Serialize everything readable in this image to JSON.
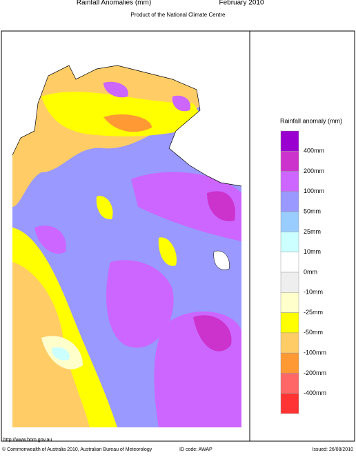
{
  "header": {
    "title": "Rainfall Anomalies (mm)",
    "period": "February 2010",
    "subtitle": "Product of the National Climate Centre"
  },
  "legend": {
    "title": "Rainfall anomaly (mm)",
    "labels": [
      "400mm",
      "200mm",
      "100mm",
      "50mm",
      "25mm",
      "10mm",
      "0mm",
      "-10mm",
      "-25mm",
      "-50mm",
      "-100mm",
      "-200mm",
      "-400mm"
    ],
    "colors": [
      "#9a00d0",
      "#cc33cc",
      "#cc66ff",
      "#9999ff",
      "#99ccff",
      "#ccffff",
      "#ffffff",
      "#eeeeee",
      "#ffffcc",
      "#ffff00",
      "#ffcc66",
      "#ff9933",
      "#ff6666",
      "#ff3333"
    ]
  },
  "footer": {
    "url": "http://www.bom.gov.au",
    "copyright": "© Commonwealth of Australia 2010, Australian Bureau of Meteorology",
    "id_code": "ID code: AWAP",
    "issued": "Issued: 26/08/2010"
  }
}
